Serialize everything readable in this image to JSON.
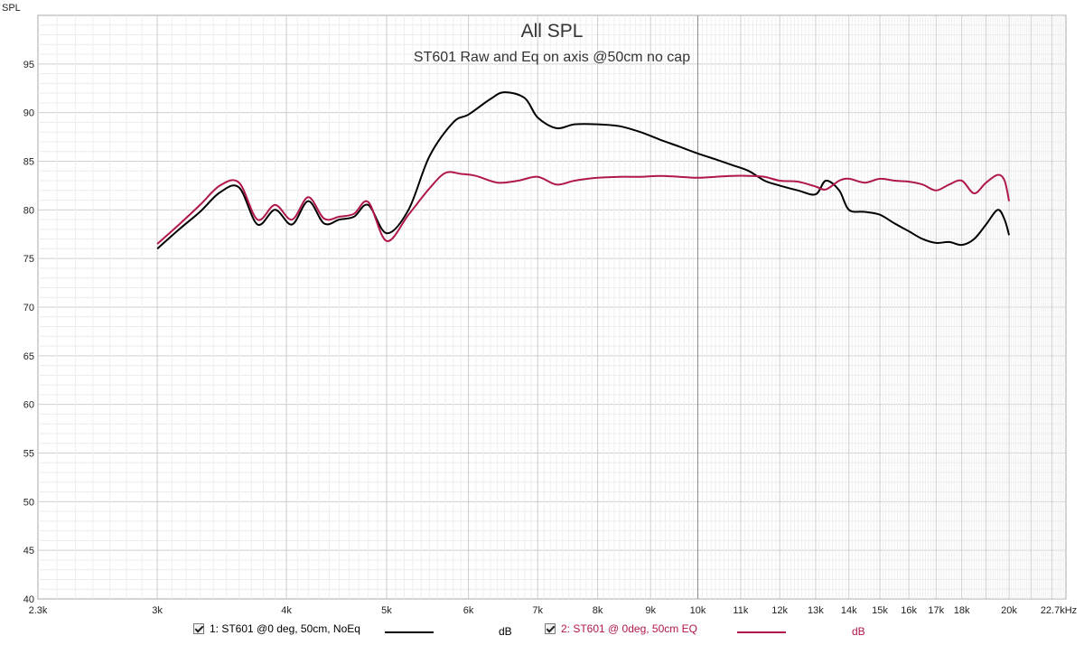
{
  "chart_data": {
    "type": "line",
    "title": "All SPL",
    "subtitle": "ST601 Raw and Eq on axis @50cm no cap",
    "ylabel": "SPL",
    "xscale": "log",
    "xlim": [
      2300,
      22700
    ],
    "ylim": [
      40,
      100
    ],
    "grid": true,
    "x_tick_labels": [
      {
        "f": 2300,
        "label": "2.3k"
      },
      {
        "f": 3000,
        "label": "3k"
      },
      {
        "f": 4000,
        "label": "4k"
      },
      {
        "f": 5000,
        "label": "5k"
      },
      {
        "f": 6000,
        "label": "6k"
      },
      {
        "f": 7000,
        "label": "7k"
      },
      {
        "f": 8000,
        "label": "8k"
      },
      {
        "f": 9000,
        "label": "9k"
      },
      {
        "f": 10000,
        "label": "10k"
      },
      {
        "f": 11000,
        "label": "11k"
      },
      {
        "f": 12000,
        "label": "12k"
      },
      {
        "f": 13000,
        "label": "13k"
      },
      {
        "f": 14000,
        "label": "14k"
      },
      {
        "f": 15000,
        "label": "15k"
      },
      {
        "f": 16000,
        "label": "16k"
      },
      {
        "f": 17000,
        "label": "17k"
      },
      {
        "f": 18000,
        "label": "18k"
      },
      {
        "f": 20000,
        "label": "20k"
      },
      {
        "f": 22700,
        "label": "22.7kHz"
      }
    ],
    "y_ticks": [
      40,
      45,
      50,
      55,
      60,
      65,
      70,
      75,
      80,
      85,
      90,
      95
    ],
    "series": [
      {
        "name": "1: ST601 @0 deg, 50cm, NoEq",
        "unit": "dB",
        "color": "#000000",
        "x": [
          3000,
          3150,
          3300,
          3450,
          3600,
          3750,
          3900,
          4050,
          4200,
          4350,
          4500,
          4650,
          4800,
          5000,
          5250,
          5500,
          5800,
          6000,
          6300,
          6500,
          6800,
          7000,
          7300,
          7600,
          8000,
          8400,
          8800,
          9200,
          9600,
          10000,
          10400,
          10800,
          11200,
          11600,
          12000,
          12500,
          13000,
          13300,
          13700,
          14000,
          14500,
          15000,
          15500,
          16000,
          16500,
          17000,
          17500,
          18000,
          18500,
          19000,
          19500,
          19800,
          20000
        ],
        "y": [
          76,
          78,
          79.8,
          81.8,
          82.3,
          78.5,
          80,
          78.5,
          80.9,
          78.6,
          79,
          79.3,
          80.5,
          77.6,
          80,
          85.5,
          89,
          89.8,
          91.4,
          92.1,
          91.5,
          89.5,
          88.4,
          88.8,
          88.8,
          88.6,
          88,
          87.2,
          86.5,
          85.8,
          85.2,
          84.6,
          84,
          83,
          82.5,
          82,
          81.6,
          83,
          82,
          80,
          79.8,
          79.5,
          78.6,
          77.8,
          77,
          76.6,
          76.7,
          76.4,
          77,
          78.5,
          80,
          79,
          77.4
        ]
      },
      {
        "name": "2: ST601 @ 0deg, 50cm EQ",
        "unit": "dB",
        "color": "#b0174a",
        "x": [
          3000,
          3150,
          3300,
          3450,
          3600,
          3750,
          3900,
          4050,
          4200,
          4350,
          4500,
          4650,
          4800,
          5000,
          5250,
          5500,
          5700,
          5900,
          6100,
          6400,
          6700,
          7000,
          7300,
          7600,
          8000,
          8400,
          8800,
          9200,
          9600,
          10000,
          10400,
          10800,
          11200,
          11600,
          12000,
          12500,
          13000,
          13300,
          13700,
          14000,
          14500,
          15000,
          15500,
          16000,
          16500,
          17000,
          17500,
          18000,
          18500,
          19000,
          19500,
          19800,
          20000
        ],
        "y": [
          76.5,
          78.5,
          80.5,
          82.5,
          82.8,
          79,
          80.5,
          79,
          81.3,
          79.1,
          79.3,
          79.6,
          80.8,
          76.8,
          79.5,
          82.2,
          83.8,
          83.7,
          83.5,
          82.8,
          83,
          83.4,
          82.6,
          83,
          83.3,
          83.4,
          83.4,
          83.5,
          83.4,
          83.3,
          83.4,
          83.5,
          83.5,
          83.4,
          83,
          82.9,
          82.4,
          82.1,
          83,
          83.2,
          82.8,
          83.2,
          83,
          82.9,
          82.6,
          82,
          82.6,
          83,
          81.7,
          82.8,
          83.6,
          83,
          80.9
        ]
      }
    ]
  },
  "legend": [
    {
      "checked": true,
      "label": "1: ST601 @0 deg, 50cm, NoEq",
      "unit": "dB",
      "color": "#000000"
    },
    {
      "checked": true,
      "label": "2: ST601 @ 0deg, 50cm EQ",
      "unit": "dB",
      "color": "#b0174a"
    }
  ]
}
